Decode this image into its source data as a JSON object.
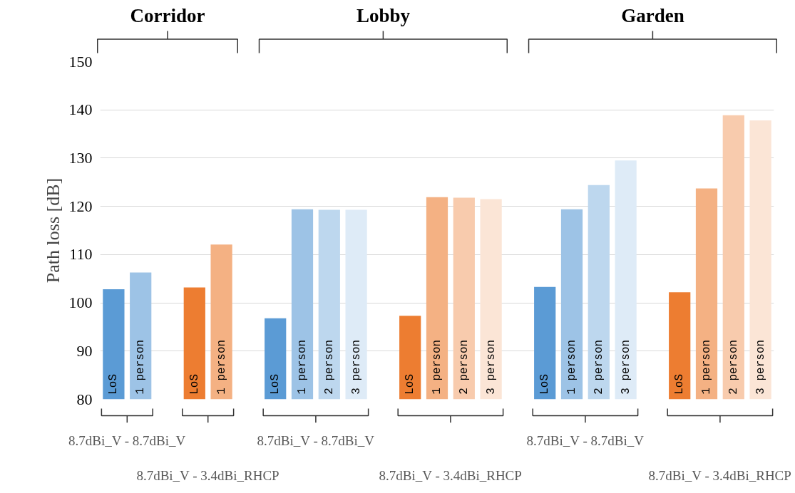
{
  "chart_data": {
    "type": "bar",
    "ylabel": "Path loss [dB]",
    "categories": [
      "LoS",
      "1 person",
      null,
      "LoS",
      "1 person",
      null,
      "LoS",
      "1 person",
      "2 person",
      "3 person",
      null,
      "LoS",
      "1 person",
      "2 person",
      "3 person",
      null,
      "LoS",
      "1 person",
      "2 person",
      "3 person",
      null,
      "LoS",
      "1 person",
      "2 person",
      "3 person"
    ],
    "values": [
      102.8,
      106.3,
      null,
      103.2,
      112.1,
      null,
      96.8,
      119.4,
      119.3,
      119.3,
      null,
      97.3,
      121.9,
      121.8,
      121.5,
      null,
      103.3,
      119.4,
      124.4,
      129.5,
      null,
      102.2,
      123.7,
      138.9,
      137.8
    ],
    "colors": [
      "#5b9bd5",
      "#9dc3e6",
      null,
      "#ed7d31",
      "#f4b183",
      null,
      "#5b9bd5",
      "#9dc3e6",
      "#bdd7ee",
      "#deebf7",
      null,
      "#ed7d31",
      "#f4b183",
      "#f8cbad",
      "#fbe5d6",
      null,
      "#5b9bd5",
      "#9dc3e6",
      "#bdd7ee",
      "#deebf7",
      null,
      "#ed7d31",
      "#f4b183",
      "#f8cbad",
      "#fbe5d6"
    ],
    "ylim": [
      80,
      150
    ],
    "yticks": [
      80,
      90,
      100,
      110,
      120,
      130,
      140,
      150
    ],
    "grid": "y",
    "annotations": [
      "8.7dBi_V - 8.7dBi_V",
      "8.7dBi_V - 3.4dBi_RHCP",
      "8.7dBi_V - 8.7dBi_V",
      "8.7dBi_V - 3.4dBi_RHCP",
      "8.7dBi_V - 8.7dBi_V",
      "8.7dBi_V - 3.4dBi_RHCP",
      "Corridor",
      "Lobby",
      "Garden"
    ]
  }
}
